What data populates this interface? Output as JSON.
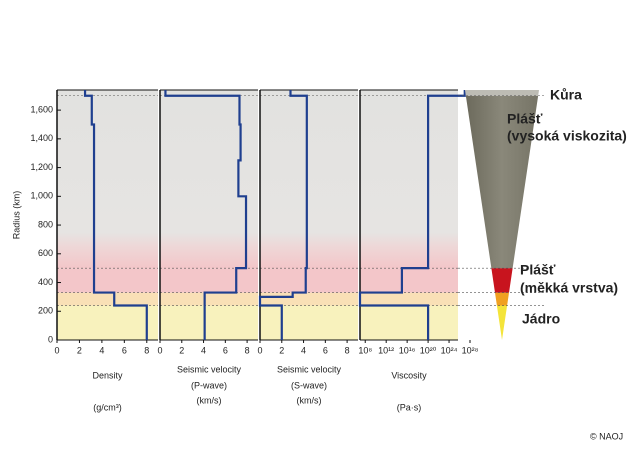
{
  "chart_data": [
    {
      "type": "line",
      "ylabel": "Radius (km)",
      "xlabel": [
        "Density",
        "(g/cm³)"
      ],
      "ylim": [
        0,
        1740
      ],
      "yticks": [
        0,
        200,
        400,
        600,
        800,
        {
          "value": 1000,
          "label": "1,000"
        },
        {
          "value": 1200,
          "label": "1,200"
        },
        {
          "value": 1400,
          "label": "1,400"
        },
        {
          "value": 1600,
          "label": "1,600"
        }
      ],
      "xlim": [
        0,
        9
      ],
      "xticks": [
        0,
        2,
        4,
        6,
        8
      ],
      "color": "#1f3f8f",
      "x": [
        8,
        8,
        5.1,
        5.1,
        3.3,
        3.3,
        3.1,
        3.1,
        2.5,
        2.5
      ],
      "y": [
        0,
        240,
        240,
        330,
        330,
        1500,
        1500,
        1700,
        1700,
        1740
      ]
    },
    {
      "type": "line",
      "xlabel": [
        "Seismic velocity",
        "(P-wave)",
        "(km/s)"
      ],
      "ylim": [
        0,
        1740
      ],
      "xlim": [
        0,
        9
      ],
      "xticks": [
        0,
        2,
        4,
        6,
        8
      ],
      "color": "#1f3f8f",
      "x": [
        4.1,
        4.1,
        7.0,
        7.0,
        7.9,
        7.9,
        7.2,
        7.2,
        7.4,
        7.4,
        7.3,
        7.3,
        0.5,
        0.5
      ],
      "y": [
        0,
        330,
        330,
        500,
        500,
        1000,
        1000,
        1250,
        1250,
        1500,
        1500,
        1700,
        1700,
        1740
      ]
    },
    {
      "type": "line",
      "xlabel": [
        "Seismic velocity",
        "(S-wave)",
        "(km/s)"
      ],
      "ylim": [
        0,
        1740
      ],
      "xlim": [
        0,
        9
      ],
      "xticks": [
        0,
        2,
        4,
        6,
        8
      ],
      "color": "#1f3f8f",
      "x": [
        2.0,
        2.0,
        0,
        0,
        3.0,
        3.0,
        4.2,
        4.2,
        4.3,
        4.3,
        2.8,
        2.8
      ],
      "y": [
        0,
        240,
        240,
        300,
        300,
        330,
        330,
        500,
        500,
        1700,
        1700,
        1740
      ]
    },
    {
      "type": "line",
      "xlabel": [
        "Viscosity",
        "(Pa·s)"
      ],
      "xscale": "log",
      "ylim": [
        0,
        1740
      ],
      "xlim": [
        10000000.0,
        1e+28
      ],
      "xticks": [
        {
          "value": 100000000.0,
          "label": "10⁸"
        },
        {
          "value": 1000000000000.0,
          "label": "10¹²"
        },
        {
          "value": 1e+16,
          "label": "10¹⁶"
        },
        {
          "value": 1e+20,
          "label": "10²⁰"
        },
        {
          "value": 1e+24,
          "label": "10²⁴"
        },
        {
          "value": 1e+28,
          "label": "10²⁸"
        }
      ],
      "color": "#1f3f8f",
      "x": [
        1e+20,
        1e+20,
        10000000.0,
        10000000.0,
        1000000000000000.0,
        1000000000000000.0,
        1e+20,
        1e+20,
        1e+27,
        1e+27
      ],
      "y": [
        0,
        240,
        240,
        330,
        330,
        500,
        500,
        1700,
        1700,
        1740
      ]
    }
  ],
  "layer_boundaries": [
    240,
    330,
    500,
    1700
  ],
  "labels": {
    "crust": "Kůra",
    "mantle": [
      "Plášť",
      "(vysoká viskozita)"
    ],
    "soft_layer": [
      "Plášť",
      "(měkká vrstva)"
    ],
    "core": "Jádro"
  },
  "credit": "© NAOJ"
}
